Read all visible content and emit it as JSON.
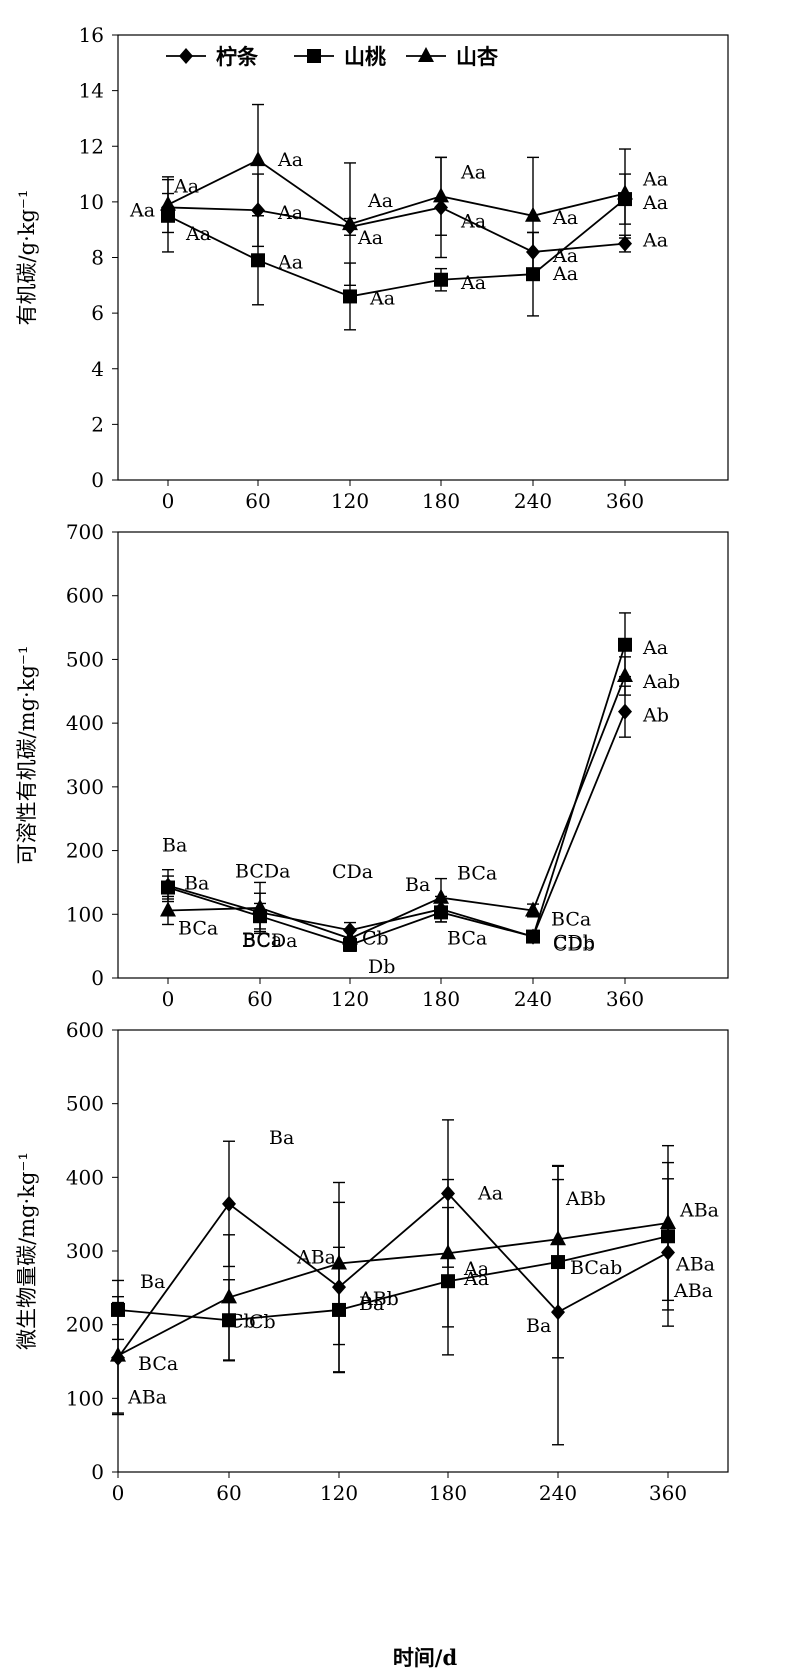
{
  "xlabel": "时间/d",
  "legend": [
    "柠条",
    "山桃",
    "山杏"
  ],
  "colors": {
    "line": "#000000",
    "background": "#ffffff"
  },
  "chart_data": [
    {
      "type": "line",
      "ylabel": "有机碳/g·kg⁻¹",
      "categories": [
        0,
        60,
        120,
        180,
        240,
        360
      ],
      "ylim": [
        0,
        16
      ],
      "yticks": [
        0,
        2,
        4,
        6,
        8,
        10,
        12,
        14,
        16
      ],
      "legend_position": "top-left",
      "series": [
        {
          "name": "柠条",
          "marker": "diamond",
          "values": [
            9.8,
            9.7,
            9.1,
            9.8,
            8.2,
            8.5
          ],
          "errors": [
            0.5,
            1.3,
            0.3,
            1.8,
            0.7,
            0.3
          ],
          "labels": [
            "Aa",
            "Aa",
            "Aa",
            "Aa",
            "Aa",
            "Aa"
          ]
        },
        {
          "name": "山桃",
          "marker": "square",
          "values": [
            9.5,
            7.9,
            6.6,
            7.2,
            7.4,
            10.1
          ],
          "errors": [
            1.3,
            1.6,
            1.2,
            0.4,
            1.5,
            0.9
          ],
          "labels": [
            "Aa",
            "Aa",
            "Aa",
            "Aa",
            "Aa",
            "Aa"
          ]
        },
        {
          "name": "山杏",
          "marker": "triangle",
          "values": [
            9.9,
            11.5,
            9.2,
            10.2,
            9.5,
            10.3
          ],
          "errors": [
            1.0,
            2.0,
            2.2,
            1.4,
            2.1,
            1.6
          ],
          "labels": [
            "Aa",
            "Aa",
            "Aa",
            "Aa",
            "Aa",
            "Aa"
          ]
        }
      ]
    },
    {
      "type": "line",
      "ylabel": "可溶性有机碳/mg·kg⁻¹",
      "categories": [
        0,
        60,
        120,
        180,
        240,
        360
      ],
      "ylim": [
        0,
        700
      ],
      "yticks": [
        0,
        100,
        200,
        300,
        400,
        500,
        600,
        700
      ],
      "series": [
        {
          "name": "柠条",
          "marker": "diamond",
          "values": [
            145,
            103,
            75,
            108,
            65,
            418
          ],
          "errors": [
            25,
            30,
            12,
            20,
            8,
            40
          ],
          "labels": [
            "Ba",
            "BCDa",
            "CDa",
            "Ba",
            "CDb",
            "Ab"
          ]
        },
        {
          "name": "山桃",
          "marker": "square",
          "values": [
            142,
            97,
            52,
            103,
            65,
            523
          ],
          "errors": [
            18,
            20,
            10,
            15,
            8,
            50
          ],
          "labels": [
            "Ba",
            "BCDa",
            "Db",
            "BCa",
            "CDb",
            "Aa"
          ]
        },
        {
          "name": "山杏",
          "marker": "triangle",
          "values": [
            106,
            110,
            62,
            126,
            106,
            474
          ],
          "errors": [
            22,
            40,
            15,
            30,
            10,
            30
          ],
          "labels": [
            "BCa",
            "BCa",
            "Cb",
            "BCa",
            "BCa",
            "Aab"
          ]
        }
      ]
    },
    {
      "type": "line",
      "ylabel": "微生物量碳/mg·kg⁻¹",
      "categories": [
        0,
        60,
        120,
        180,
        240,
        360
      ],
      "ylim": [
        0,
        600
      ],
      "yticks": [
        0,
        100,
        200,
        300,
        400,
        500,
        600
      ],
      "series": [
        {
          "name": "柠条",
          "marker": "diamond",
          "values": [
            155,
            364,
            251,
            378,
            217,
            298
          ],
          "errors": [
            75,
            85,
            115,
            100,
            180,
            100
          ],
          "labels": [
            "BCa",
            "Ba",
            "ABb",
            "Aa",
            "Ba",
            "ABa"
          ]
        },
        {
          "name": "山桃",
          "marker": "square",
          "values": [
            220,
            206,
            220,
            259,
            285,
            320
          ],
          "errors": [
            40,
            55,
            85,
            100,
            130,
            100
          ],
          "labels": [
            "Ba",
            "Cb",
            "Ba",
            "Aa",
            "BCab",
            "ABa"
          ]
        },
        {
          "name": "山杏",
          "marker": "triangle",
          "values": [
            158,
            237,
            283,
            297,
            316,
            338
          ],
          "errors": [
            80,
            85,
            110,
            100,
            100,
            105
          ],
          "labels": [
            "ABa",
            "Cb",
            "ABa",
            "Aa",
            "ABb",
            "ABa"
          ]
        }
      ]
    }
  ]
}
